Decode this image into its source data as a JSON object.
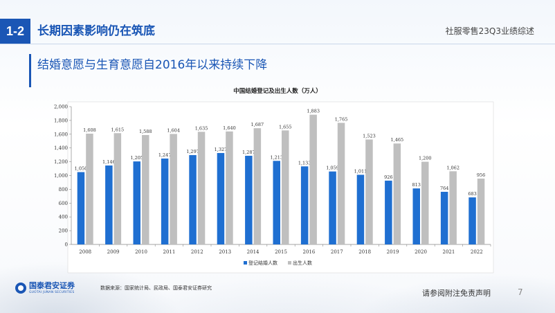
{
  "header": {
    "section_number": "1-2",
    "section_title": "长期因素影响仍在筑底",
    "report_name": "社服零售23Q3业绩综述"
  },
  "subtitle": "结婚意愿与生育意愿自2016年以来持续下降",
  "chart_data": {
    "type": "bar",
    "title": "中国结婚登记及出生人数（万人）",
    "categories": [
      "2008",
      "2009",
      "2010",
      "2011",
      "2012",
      "2013",
      "2014",
      "2015",
      "2016",
      "2017",
      "2018",
      "2019",
      "2020",
      "2021",
      "2022"
    ],
    "series": [
      {
        "name": "登记结婚人数",
        "color": "#1f6fd1",
        "values": [
          1050,
          1146,
          1205,
          1247,
          1297,
          1327,
          1287,
          1213,
          1133,
          1059,
          1011,
          926,
          813,
          764,
          683
        ]
      },
      {
        "name": "出生人数",
        "color": "#bfbfbf",
        "values": [
          1608,
          1615,
          1588,
          1604,
          1635,
          1640,
          1687,
          1655,
          1883,
          1765,
          1523,
          1465,
          1200,
          1062,
          956
        ]
      }
    ],
    "yticks": [
      "0",
      "200",
      "400",
      "600",
      "800",
      "1,000",
      "1,200",
      "1,400",
      "1,600",
      "1,800",
      "2,000"
    ],
    "ylim": [
      0,
      2000
    ],
    "grid": false,
    "legend_position": "bottom"
  },
  "footer": {
    "logo_cn": "国泰君安证券",
    "logo_en": "GUOTAI JUNAN SECURITIES",
    "source": "数据来源：国家统计局、民政局、国泰君安证券研究",
    "disclaimer": "请参阅附注免责声明",
    "page_number": "7"
  }
}
